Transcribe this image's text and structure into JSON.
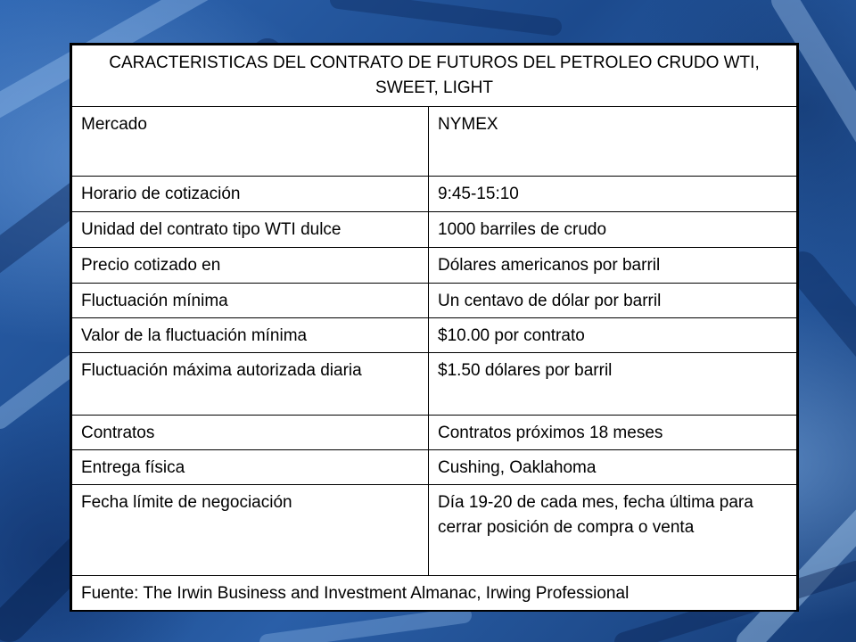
{
  "table": {
    "title": "CARACTERISTICAS DEL CONTRATO DE FUTUROS DEL PETROLEO CRUDO WTI, SWEET, LIGHT",
    "rows": [
      {
        "label": "Mercado",
        "value": "NYMEX"
      },
      {
        "label": "Horario de cotización",
        "value": "9:45-15:10"
      },
      {
        "label": "Unidad del contrato tipo WTI dulce",
        "value": "1000 barriles de crudo"
      },
      {
        "label": "Precio cotizado en",
        "value": "Dólares americanos por barril"
      },
      {
        "label": "Fluctuación mínima",
        "value": "Un centavo de dólar por barril"
      },
      {
        "label": "Valor de la fluctuación mínima",
        "value": "$10.00 por contrato"
      },
      {
        "label": "Fluctuación máxima autorizada diaria",
        "value": "$1.50 dólares por barril"
      },
      {
        "label": "Contratos",
        "value": "Contratos próximos 18 meses"
      },
      {
        "label": "Entrega física",
        "value": "Cushing, Oaklahoma"
      },
      {
        "label": "Fecha límite de negociación",
        "value": "Día 19-20 de cada mes, fecha última para cerrar posición de compra o venta"
      }
    ],
    "source": "Fuente: The Irwin Business and Investment Almanac, Irwing Professional"
  },
  "colors": {
    "background": "#1f4f93",
    "table_background": "#ffffff",
    "border": "#000000",
    "text": "#000000"
  }
}
